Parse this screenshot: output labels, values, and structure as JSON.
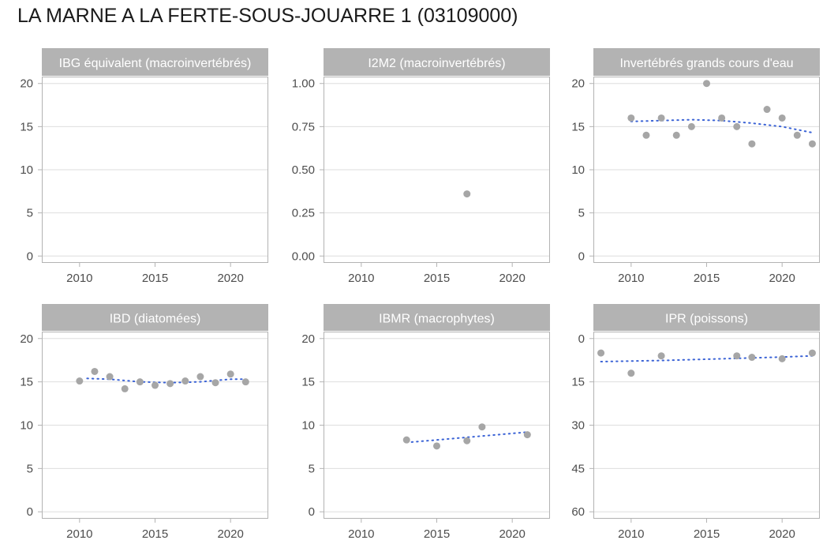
{
  "title": "LA MARNE A LA FERTE-SOUS-JOUARRE 1 (03109000)",
  "colors": {
    "strip": "#b3b3b3",
    "panel_border": "#b3b3b3",
    "grid": "#dedede",
    "point": "#a6a6a6",
    "trend": "#3b63d6"
  },
  "chart_data": [
    {
      "type": "scatter",
      "title": "IBG équivalent (macroinvertébrés)",
      "x_ticks": [
        2010,
        2015,
        2020
      ],
      "y_ticks": [
        0,
        5,
        10,
        15,
        20
      ],
      "y_tick_labels": [
        "0",
        "5",
        "10",
        "15",
        "20"
      ],
      "xlim": [
        2007.5,
        2022.5
      ],
      "ylim": [
        -0.8,
        20.8
      ],
      "y_reversed": false,
      "points": [],
      "trend": []
    },
    {
      "type": "scatter",
      "title": "I2M2 (macroinvertébrés)",
      "x_ticks": [
        2010,
        2015,
        2020
      ],
      "y_ticks": [
        0,
        0.25,
        0.5,
        0.75,
        1.0
      ],
      "y_tick_labels": [
        "0.00",
        "0.25",
        "0.50",
        "0.75",
        "1.00"
      ],
      "xlim": [
        2007.5,
        2022.5
      ],
      "ylim": [
        -0.04,
        1.04
      ],
      "y_reversed": false,
      "points": [
        [
          2017,
          0.36
        ]
      ],
      "trend": []
    },
    {
      "type": "scatter",
      "title": "Invertébrés grands cours d'eau",
      "x_ticks": [
        2010,
        2015,
        2020
      ],
      "y_ticks": [
        0,
        5,
        10,
        15,
        20
      ],
      "y_tick_labels": [
        "0",
        "5",
        "10",
        "15",
        "20"
      ],
      "xlim": [
        2007.5,
        2022.5
      ],
      "ylim": [
        -0.8,
        20.8
      ],
      "y_reversed": false,
      "points": [
        [
          2010,
          16
        ],
        [
          2011,
          14
        ],
        [
          2012,
          16
        ],
        [
          2013,
          14
        ],
        [
          2014,
          15
        ],
        [
          2015,
          20
        ],
        [
          2016,
          16
        ],
        [
          2017,
          15
        ],
        [
          2018,
          13
        ],
        [
          2019,
          17
        ],
        [
          2020,
          16
        ],
        [
          2021,
          14
        ],
        [
          2022,
          13
        ]
      ],
      "trend": [
        [
          2010,
          15.6
        ],
        [
          2012,
          15.7
        ],
        [
          2014,
          15.8
        ],
        [
          2016,
          15.7
        ],
        [
          2018,
          15.4
        ],
        [
          2020,
          15.0
        ],
        [
          2022,
          14.3
        ]
      ]
    },
    {
      "type": "scatter",
      "title": "IBD (diatomées)",
      "x_ticks": [
        2010,
        2015,
        2020
      ],
      "y_ticks": [
        0,
        5,
        10,
        15,
        20
      ],
      "y_tick_labels": [
        "0",
        "5",
        "10",
        "15",
        "20"
      ],
      "xlim": [
        2007.5,
        2022.5
      ],
      "ylim": [
        -0.8,
        20.8
      ],
      "y_reversed": false,
      "points": [
        [
          2010,
          15.1
        ],
        [
          2011,
          16.2
        ],
        [
          2012,
          15.6
        ],
        [
          2013,
          14.2
        ],
        [
          2014,
          15.0
        ],
        [
          2015,
          14.6
        ],
        [
          2016,
          14.8
        ],
        [
          2017,
          15.1
        ],
        [
          2018,
          15.6
        ],
        [
          2019,
          14.9
        ],
        [
          2020,
          15.9
        ],
        [
          2021,
          15.0
        ]
      ],
      "trend": [
        [
          2010.5,
          15.4
        ],
        [
          2012,
          15.3
        ],
        [
          2014,
          15.0
        ],
        [
          2016,
          14.9
        ],
        [
          2018,
          15.0
        ],
        [
          2020,
          15.3
        ],
        [
          2021,
          15.3
        ]
      ]
    },
    {
      "type": "scatter",
      "title": "IBMR (macrophytes)",
      "x_ticks": [
        2010,
        2015,
        2020
      ],
      "y_ticks": [
        0,
        5,
        10,
        15,
        20
      ],
      "y_tick_labels": [
        "0",
        "5",
        "10",
        "15",
        "20"
      ],
      "xlim": [
        2007.5,
        2022.5
      ],
      "ylim": [
        -0.8,
        20.8
      ],
      "y_reversed": false,
      "points": [
        [
          2013,
          8.3
        ],
        [
          2015,
          7.6
        ],
        [
          2017,
          8.2
        ],
        [
          2018,
          9.8
        ],
        [
          2021,
          8.9
        ]
      ],
      "trend": [
        [
          2013,
          8.0
        ],
        [
          2015,
          8.3
        ],
        [
          2017,
          8.6
        ],
        [
          2019,
          8.9
        ],
        [
          2021,
          9.2
        ]
      ]
    },
    {
      "type": "scatter",
      "title": "IPR (poissons)",
      "x_ticks": [
        2010,
        2015,
        2020
      ],
      "y_ticks": [
        0,
        15,
        30,
        45,
        60
      ],
      "y_tick_labels": [
        "0",
        "15",
        "30",
        "45",
        "60"
      ],
      "xlim": [
        2007.5,
        2022.5
      ],
      "ylim": [
        -2.4,
        62.4
      ],
      "y_reversed": true,
      "points": [
        [
          2008,
          5
        ],
        [
          2010,
          12
        ],
        [
          2012,
          6
        ],
        [
          2017,
          6
        ],
        [
          2018,
          6.5
        ],
        [
          2020,
          7
        ],
        [
          2022,
          5
        ]
      ],
      "trend": [
        [
          2008,
          8.0
        ],
        [
          2012,
          7.6
        ],
        [
          2016,
          7.0
        ],
        [
          2020,
          6.4
        ],
        [
          2022,
          6.0
        ]
      ]
    }
  ]
}
